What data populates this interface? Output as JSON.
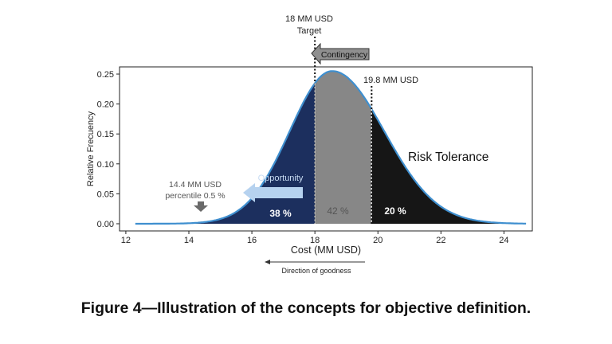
{
  "caption": "Figure 4—Illustration of the concepts for objective definition.",
  "colors": {
    "opportunity": "#1c2f5e",
    "contingency": "#878787",
    "risk": "#161616",
    "curve": "#3f8fcf",
    "arrow_opportunity": "#b6d2ef",
    "arrow_contingency": "#8f8f8f"
  },
  "chart_data": {
    "type": "area",
    "xlabel": "Cost (MM USD)",
    "ylabel": "Relative Frecuency",
    "xlim": [
      11.8,
      24.9
    ],
    "ylim": [
      -0.012,
      0.262
    ],
    "xticks": [
      12,
      14,
      16,
      18,
      20,
      22,
      24
    ],
    "yticks": [
      0.0,
      0.05,
      0.1,
      0.15,
      0.2,
      0.25
    ],
    "ytick_labels": [
      "0.00",
      "0.05",
      "0.10",
      "0.15",
      "0.20",
      "0.25"
    ],
    "grid": false,
    "distribution": {
      "x_range": [
        12.3,
        24.7
      ],
      "mode": 18.55,
      "peak": 0.255,
      "sigma_left": 1.35,
      "sigma_right": 1.65
    },
    "regions": [
      {
        "name": "Opportunity",
        "from": 12.3,
        "to": 18.0,
        "percent_label": "38 %"
      },
      {
        "name": "Contingency",
        "from": 18.0,
        "to": 19.8,
        "percent_label": "42 %"
      },
      {
        "name": "Risk Tolerance",
        "from": 19.8,
        "to": 24.7,
        "percent_label": "20 %"
      }
    ],
    "markers": [
      {
        "x": 18.0,
        "label_line1": "18 MM USD",
        "label_line2": "Target"
      },
      {
        "x": 19.8,
        "label": "19.8 MM USD"
      },
      {
        "x": 14.4,
        "label_line1": "14.4 MM USD",
        "label_line2": "percentile 0.5 %"
      }
    ],
    "annotations": {
      "contingency": "Contingency",
      "opportunity": "Opportunity",
      "risk_tolerance": "Risk Tolerance",
      "direction": "Direction of goodness"
    }
  }
}
